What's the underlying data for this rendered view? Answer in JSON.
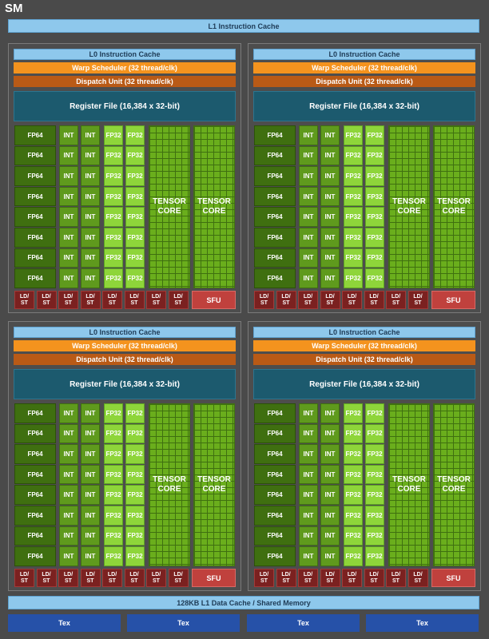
{
  "sm": {
    "title": "SM",
    "l1_instruction_cache": "L1 Instruction Cache",
    "l1_data_cache": "128KB L1 Data Cache / Shared Memory",
    "tex_units": [
      "Tex",
      "Tex",
      "Tex",
      "Tex"
    ]
  },
  "partition": {
    "l0_cache": "L0 Instruction Cache",
    "warp_scheduler": "Warp Scheduler (32 thread/clk)",
    "dispatch_unit": "Dispatch Unit (32 thread/clk)",
    "register_file": "Register File (16,384 x 32-bit)",
    "fp64_label": "FP64",
    "int_label": "INT",
    "fp32_label": "FP32",
    "tensor_core_label": "TENSOR\nCORE",
    "ldst_label": "LD/\nST",
    "sfu_label": "SFU",
    "rows_per_partition": 8,
    "ldst_count": 8
  },
  "colors": {
    "fp64": "#3f6f10",
    "int": "#5f9a1d",
    "fp32": "#8ed53a",
    "tensor_core": "#6aae1c",
    "ldst": "#7b2120",
    "sfu": "#c0413d",
    "register_file": "#1c5a6e",
    "warp_scheduler": "#f4931e",
    "dispatch_unit": "#b95a16",
    "cache": "#8ec8ec",
    "tex": "#2651a8"
  }
}
